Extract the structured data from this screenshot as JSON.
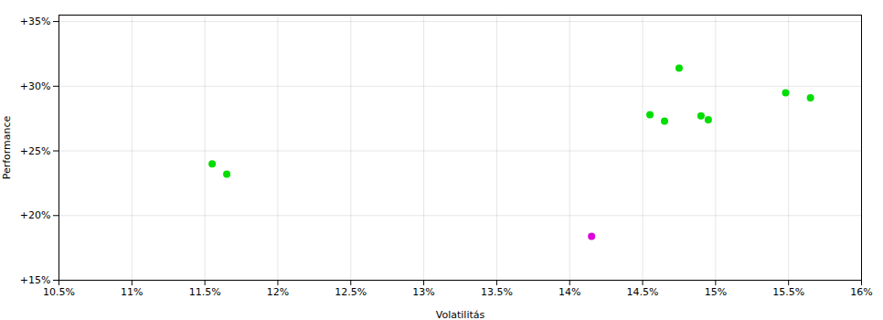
{
  "chart_data": {
    "type": "scatter",
    "xlabel": "Volatilitás",
    "ylabel": "Performance",
    "xlim": [
      0.105,
      0.16
    ],
    "ylim": [
      0.15,
      0.355
    ],
    "xticks": [
      {
        "value": 0.105,
        "label": "10.5%"
      },
      {
        "value": 0.11,
        "label": "11%"
      },
      {
        "value": 0.115,
        "label": "11.5%"
      },
      {
        "value": 0.12,
        "label": "12%"
      },
      {
        "value": 0.125,
        "label": "12.5%"
      },
      {
        "value": 0.13,
        "label": "13%"
      },
      {
        "value": 0.135,
        "label": "13.5%"
      },
      {
        "value": 0.14,
        "label": "14%"
      },
      {
        "value": 0.145,
        "label": "14.5%"
      },
      {
        "value": 0.15,
        "label": "15%"
      },
      {
        "value": 0.155,
        "label": "15.5%"
      },
      {
        "value": 0.16,
        "label": "16%"
      }
    ],
    "yticks": [
      {
        "value": 0.15,
        "label": "+15%"
      },
      {
        "value": 0.2,
        "label": "+20%"
      },
      {
        "value": 0.25,
        "label": "+25%"
      },
      {
        "value": 0.3,
        "label": "+30%"
      },
      {
        "value": 0.35,
        "label": "+35%"
      }
    ],
    "grid": true,
    "series": [
      {
        "color": "#00dd00",
        "x": [
          0.1155,
          0.1165,
          0.1475,
          0.1455,
          0.1465,
          0.149,
          0.1495,
          0.1548,
          0.1565
        ],
        "values": [
          0.24,
          0.232,
          0.314,
          0.278,
          0.273,
          0.277,
          0.274,
          0.295,
          0.291
        ]
      },
      {
        "color": "#dd00dd",
        "x": [
          0.1415
        ],
        "values": [
          0.184
        ]
      }
    ]
  }
}
